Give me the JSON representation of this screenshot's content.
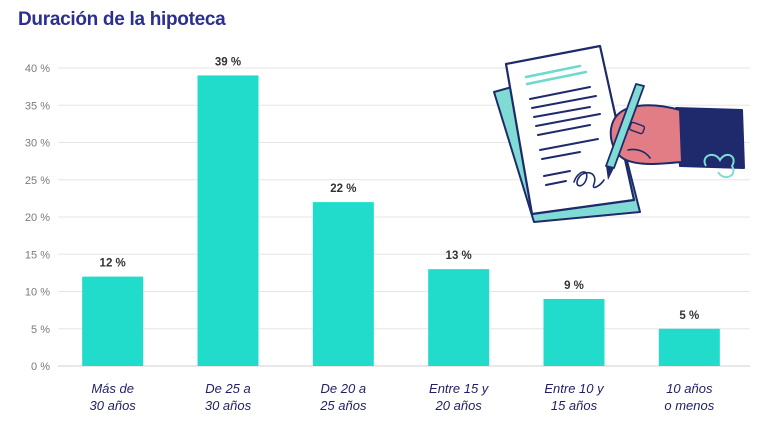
{
  "chart_data": {
    "type": "bar",
    "title": "Duración de la hipoteca",
    "categories": [
      [
        "Más de",
        "30 años"
      ],
      [
        "De 25 a",
        "30 años"
      ],
      [
        "De 20 a",
        "25 años"
      ],
      [
        "Entre 15 y",
        "20 años"
      ],
      [
        "Entre 10 y",
        "15 años"
      ],
      [
        "10 años",
        "o menos"
      ]
    ],
    "values": [
      12,
      39,
      22,
      13,
      9,
      5
    ],
    "data_labels": [
      "12 %",
      "39 %",
      "22 %",
      "13 %",
      "9 %",
      "5 %"
    ],
    "y_ticks": [
      0,
      5,
      10,
      15,
      20,
      25,
      30,
      35,
      40
    ],
    "y_tick_labels": [
      "0 %",
      "5 %",
      "10 %",
      "15 %",
      "20 %",
      "25 %",
      "30 %",
      "35 %",
      "40 %"
    ],
    "ylim": [
      0,
      40
    ],
    "xlabel": "",
    "ylabel": "",
    "grid": true,
    "bar_color": "#22dccb",
    "title_color": "#2b2f8f",
    "illustration": "hand-signing-document-icon"
  }
}
